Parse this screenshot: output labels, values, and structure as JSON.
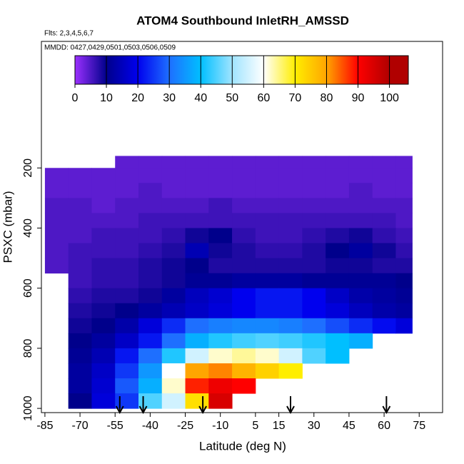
{
  "chart_data": {
    "type": "heatmap",
    "title": "ATOM4 Southbound InletRH_AMSSD",
    "subtitle": "Flts: 2,3,4,5,6,7",
    "annotation": "MMDD: 0427,0429,0501,0503,0506,0509",
    "x_label": "Latitude (deg N)",
    "y_label": "PSXC (mbar)",
    "xlim": [
      -86.5,
      85
    ],
    "xticks": [
      -85,
      -70,
      -55,
      -40,
      -25,
      -10,
      5,
      15,
      30,
      45,
      60,
      75
    ],
    "ylim": [
      -221,
      1014
    ],
    "y_reversed": true,
    "yticks": [
      200,
      400,
      600,
      800,
      1000
    ],
    "x_edges": [
      -85,
      -75,
      -65,
      -55,
      -45,
      -35,
      -25,
      -15,
      -5,
      5,
      15,
      25,
      35,
      45,
      55,
      65,
      72
    ],
    "y_edges": [
      160,
      200,
      250,
      300,
      350,
      400,
      450,
      500,
      550,
      600,
      650,
      700,
      750,
      800,
      850,
      900,
      950,
      1000
    ],
    "z": [
      [
        null,
        null,
        null,
        4,
        4,
        4,
        4,
        4,
        4,
        4,
        4,
        4,
        4,
        4,
        4,
        4
      ],
      [
        4,
        4,
        4,
        4,
        4,
        4,
        4,
        4,
        4,
        4,
        4,
        4,
        4,
        4,
        4,
        4
      ],
      [
        4,
        4,
        4,
        4,
        5,
        4,
        4,
        4,
        4,
        4,
        4,
        4,
        4,
        5,
        4,
        4
      ],
      [
        5,
        5,
        4,
        5,
        5,
        5,
        5,
        6,
        5,
        5,
        5,
        5,
        5,
        5,
        5,
        5
      ],
      [
        5,
        5,
        5,
        5,
        6,
        6,
        6,
        6,
        6,
        6,
        6,
        6,
        6,
        6,
        6,
        5
      ],
      [
        5,
        5,
        6,
        6,
        6,
        7,
        9,
        10,
        7,
        6,
        6,
        7,
        8,
        9,
        7,
        6
      ],
      [
        5,
        6,
        6,
        6,
        7,
        8,
        14,
        9,
        8,
        7,
        7,
        8,
        10,
        12,
        9,
        7
      ],
      [
        5,
        6,
        7,
        7,
        8,
        9,
        10,
        8,
        8,
        8,
        8,
        8,
        9,
        9,
        8,
        8
      ],
      [
        null,
        6,
        7,
        7,
        8,
        9,
        11,
        11,
        12,
        12,
        12,
        11,
        11,
        11,
        11,
        10
      ],
      [
        null,
        7,
        8,
        8,
        9,
        12,
        15,
        17,
        20,
        22,
        22,
        20,
        16,
        13,
        12,
        11
      ],
      [
        null,
        8,
        9,
        10,
        12,
        14,
        16,
        18,
        20,
        22,
        22,
        20,
        18,
        15,
        13,
        12
      ],
      [
        null,
        9,
        10,
        13,
        18,
        24,
        30,
        32,
        33,
        33,
        32,
        30,
        27,
        24,
        21,
        18
      ],
      [
        null,
        10,
        12,
        16,
        22,
        30,
        38,
        42,
        44,
        45,
        44,
        42,
        40,
        38,
        null,
        null
      ],
      [
        null,
        11,
        14,
        22,
        30,
        42,
        55,
        62,
        64,
        62,
        55,
        45,
        40,
        null,
        null,
        null
      ],
      [
        null,
        12,
        16,
        25,
        35,
        60,
        80,
        82,
        78,
        74,
        70,
        null,
        null,
        null,
        null,
        null
      ],
      [
        null,
        12,
        17,
        28,
        38,
        62,
        88,
        92,
        90,
        null,
        null,
        null,
        null,
        null,
        null,
        null
      ],
      [
        null,
        10,
        18,
        25,
        45,
        55,
        72,
        95,
        null,
        null,
        null,
        null,
        null,
        null,
        null,
        null
      ]
    ],
    "colorscale": [
      [
        0,
        "#9b30ff"
      ],
      [
        10,
        "#00008b"
      ],
      [
        20,
        "#0000ee"
      ],
      [
        30,
        "#1e6fff"
      ],
      [
        40,
        "#00bfff"
      ],
      [
        50,
        "#a0e4ff"
      ],
      [
        60,
        "#ffffff"
      ],
      [
        70,
        "#ffee00"
      ],
      [
        80,
        "#ffa500"
      ],
      [
        90,
        "#ff0000"
      ],
      [
        100,
        "#b00000"
      ]
    ],
    "clim": [
      0,
      106
    ],
    "cticks": [
      0,
      10,
      20,
      30,
      40,
      50,
      60,
      70,
      80,
      90,
      100
    ],
    "arrows": [
      -53,
      -43,
      -17.5,
      20,
      61
    ]
  }
}
